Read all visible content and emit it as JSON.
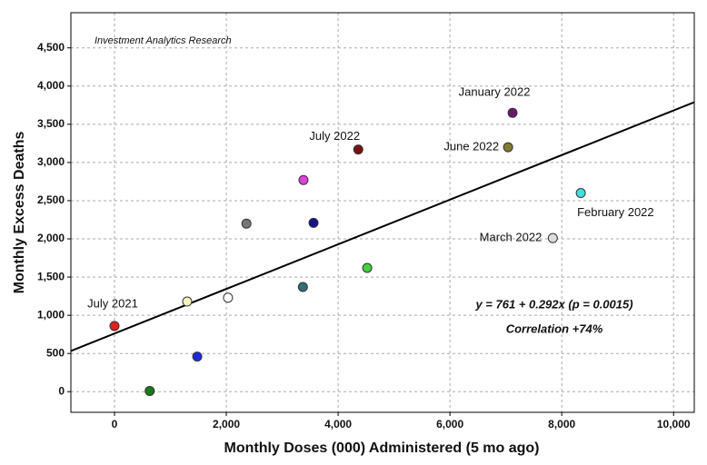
{
  "chart_data": {
    "type": "scatter",
    "x_label": "Monthly Doses (000) Administered (5 mo ago)",
    "y_label": "Monthly Excess Deaths",
    "annotations": [
      "Investment Analytics Research",
      "y = 761 + 0.292x (p = 0.0015)",
      "Correlation +74%"
    ],
    "fit": {
      "intercept": 761,
      "slope": 0.292
    },
    "x": [
      0,
      630,
      1300,
      1480,
      2030,
      2360,
      3370,
      3380,
      3560,
      4360,
      4520,
      7040,
      7120,
      7840,
      8340
    ],
    "y": [
      860,
      10,
      1180,
      460,
      1230,
      2200,
      1370,
      2770,
      2210,
      3170,
      1620,
      3200,
      3650,
      2010,
      2600
    ],
    "colors": [
      "#e02020",
      "#1a7a1a",
      "#f4f4c0",
      "#1e2adc",
      "#ffffff",
      "#777777",
      "#2f6f78",
      "#e040e0",
      "#14148a",
      "#7a1010",
      "#40d040",
      "#7f7a30",
      "#6a1a6a",
      "#dddddd",
      "#40e0e0"
    ],
    "labels": [
      "July 2021",
      null,
      null,
      null,
      null,
      null,
      null,
      null,
      null,
      "July 2022",
      null,
      "June 2022",
      "January 2022",
      "March 2022",
      "February 2022"
    ],
    "xlim": [
      -780,
      10370
    ],
    "ylim": [
      -270,
      4960
    ],
    "xticks": [
      0,
      {
        "value": 2000,
        "label": "2,000"
      },
      {
        "value": 4000,
        "label": "4,000"
      },
      {
        "value": 6000,
        "label": "6,000"
      },
      {
        "value": 8000,
        "label": "8,000"
      },
      {
        "value": 10000,
        "label": "10,000"
      }
    ],
    "yticks": [
      0,
      500,
      {
        "value": 1000,
        "label": "1,000"
      },
      {
        "value": 1500,
        "label": "1,500"
      },
      {
        "value": 2000,
        "label": "2,000"
      },
      {
        "value": 2500,
        "label": "2,500"
      },
      {
        "value": 3000,
        "label": "3,000"
      },
      {
        "value": 3500,
        "label": "3,500"
      },
      {
        "value": 4000,
        "label": "4,000"
      },
      {
        "value": 4500,
        "label": "4,500"
      }
    ],
    "grid": true
  }
}
